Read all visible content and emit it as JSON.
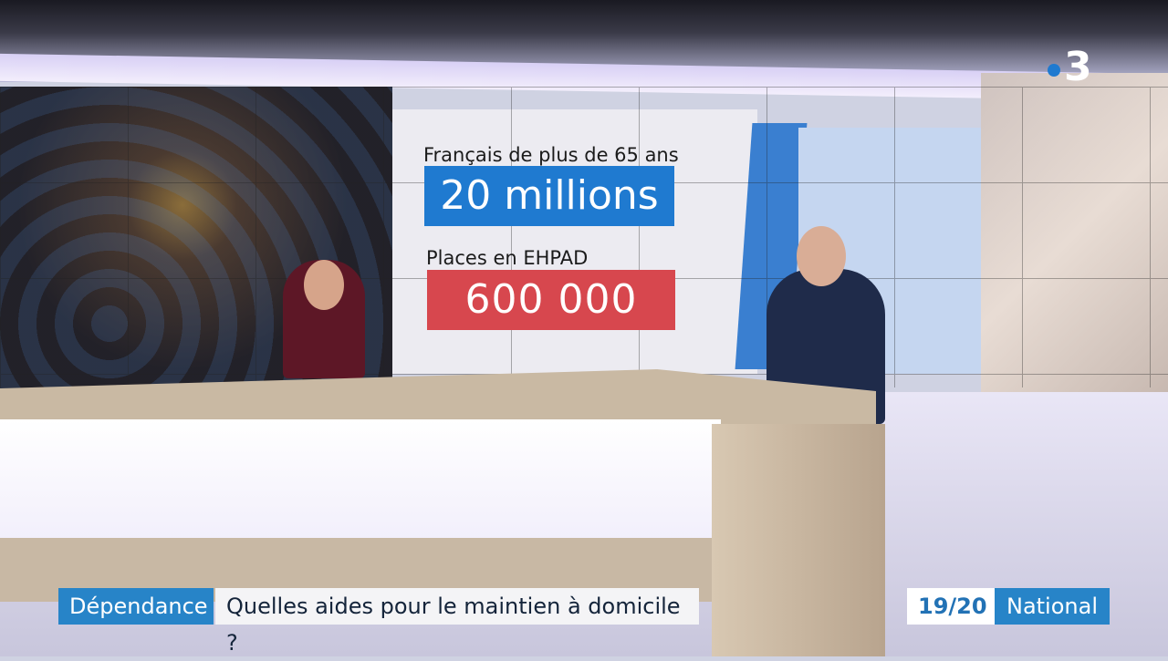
{
  "broadcast": {
    "channel_logo": "3",
    "channel_logo_color": "#1f7ad0"
  },
  "screen_graphic": {
    "stat1": {
      "label": "Français de plus de 65 ans",
      "value": "20 millions",
      "color": "#1f7ad0"
    },
    "stat2": {
      "label": "Places en EHPAD",
      "value": "600 000",
      "color": "#d7474e"
    }
  },
  "lower_third": {
    "category": "Dépendance",
    "headline": "Quelles aides pour le maintien à domicile ?",
    "show": "19/20",
    "edition": "National"
  }
}
